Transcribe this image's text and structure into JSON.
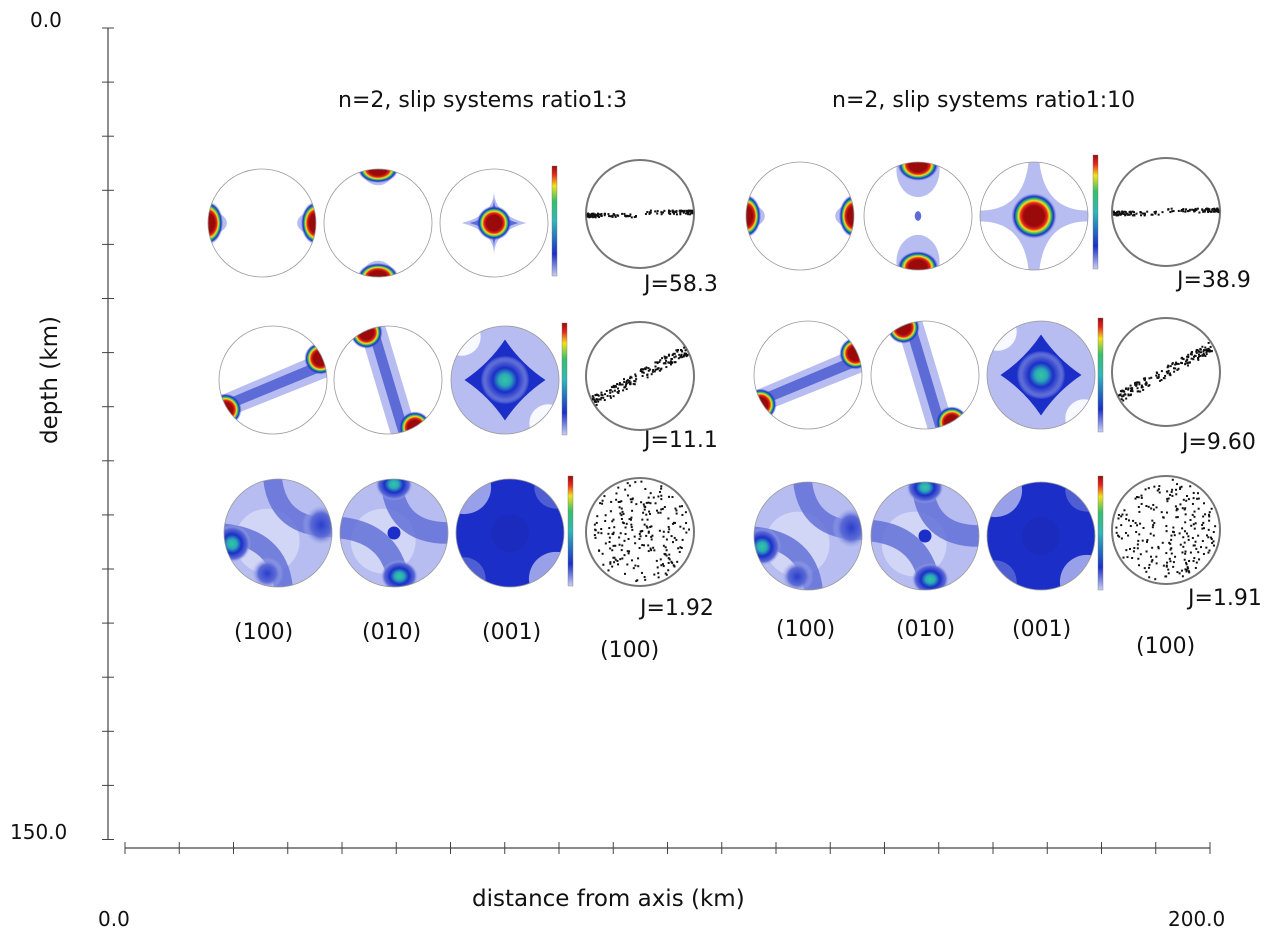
{
  "axes": {
    "y_top_value": "0.0",
    "y_bottom_value": "150.0",
    "y_label": "depth (km)",
    "x_left_value": "0.0",
    "x_right_value": "200.0",
    "x_label": "distance from axis (km)"
  },
  "panels": [
    {
      "title": "n=2, slip systems ratio1:3",
      "plane_labels": [
        "(100)",
        "(010)",
        "(001)"
      ],
      "scatter_label": "(100)",
      "rows": [
        {
          "j": "J=58.3"
        },
        {
          "j": "J=11.1"
        },
        {
          "j": "J=1.92"
        }
      ]
    },
    {
      "title": "n=2, slip systems  ratio1:10",
      "plane_labels": [
        "(100)",
        "(010)",
        "(001)"
      ],
      "scatter_label": "(100)",
      "rows": [
        {
          "j": "J=38.9"
        },
        {
          "j": "J=9.60"
        },
        {
          "j": "J=1.91"
        }
      ]
    }
  ],
  "colors": {
    "axis": "#444444",
    "dark_red": "#9b0a0a",
    "red": "#e8261c",
    "yellow": "#f2e21a",
    "green": "#35c06a",
    "cyan": "#2fb8b8",
    "blue": "#1b2fc8",
    "mid_blue": "#5c6bd6",
    "light_blue": "#b7bdf0",
    "pale_blue": "#e2e5fa"
  }
}
